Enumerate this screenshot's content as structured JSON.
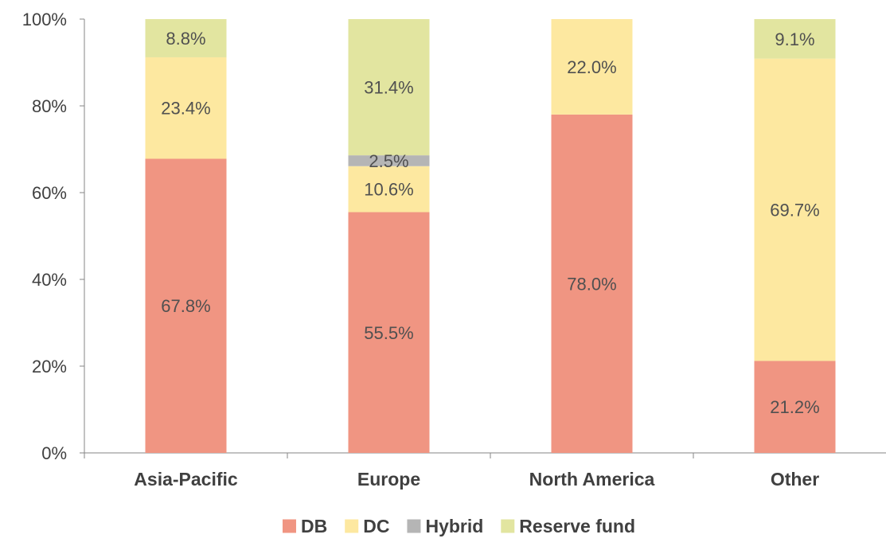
{
  "chart_data": {
    "type": "bar",
    "stacked": true,
    "title": "",
    "xlabel": "",
    "ylabel": "",
    "ylim": [
      0,
      100
    ],
    "y_ticks": [
      "0%",
      "20%",
      "40%",
      "60%",
      "80%",
      "100%"
    ],
    "grid": false,
    "legend_position": "bottom",
    "categories": [
      "Asia-Pacific",
      "Europe",
      "North America",
      "Other"
    ],
    "series": [
      {
        "name": "DB",
        "color": "#F09582",
        "values": [
          67.8,
          55.5,
          78.0,
          21.2
        ],
        "labels": [
          "67.8%",
          "55.5%",
          "78.0%",
          "21.2%"
        ]
      },
      {
        "name": "DC",
        "color": "#FDE8A0",
        "values": [
          23.4,
          10.6,
          22.0,
          69.7
        ],
        "labels": [
          "23.4%",
          "10.6%",
          "22.0%",
          "69.7%"
        ]
      },
      {
        "name": "Hybrid",
        "color": "#B5B5B5",
        "values": [
          0,
          2.5,
          0,
          0
        ],
        "labels": [
          "",
          "2.5%",
          "",
          ""
        ]
      },
      {
        "name": "Reserve fund",
        "color": "#E2E5A0",
        "values": [
          8.8,
          31.4,
          0,
          9.1
        ],
        "labels": [
          "8.8%",
          "31.4%",
          "",
          "9.1%"
        ]
      }
    ]
  }
}
